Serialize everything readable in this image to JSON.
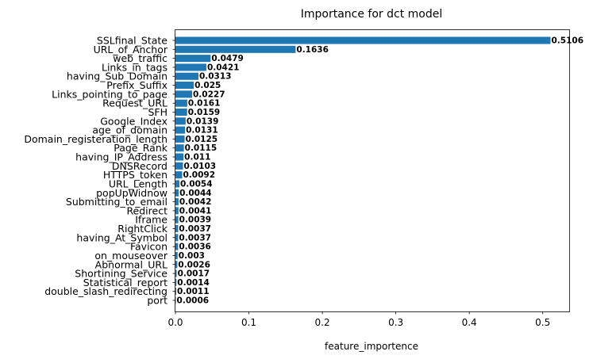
{
  "chart_data": {
    "type": "bar",
    "orientation": "horizontal",
    "title": "Importance for dct model",
    "xlabel": "feature_importence",
    "ylabel": "",
    "xlim": [
      0,
      0.536
    ],
    "xticks": [
      0.0,
      0.1,
      0.2,
      0.3,
      0.4,
      0.5
    ],
    "xtick_labels": [
      "0.0",
      "0.1",
      "0.2",
      "0.3",
      "0.4",
      "0.5"
    ],
    "grid": false,
    "bar_color": "#1f77b4",
    "categories": [
      "SSLfinal_State",
      "URL_of_Anchor",
      "web_traffic",
      "Links_in_tags",
      "having_Sub_Domain",
      "Prefix_Suffix",
      "Links_pointing_to_page",
      "Request_URL",
      "SFH",
      "Google_Index",
      "age_of_domain",
      "Domain_registeration_length",
      "Page_Rank",
      "having_IP_Address",
      "DNSRecord",
      "HTTPS_token",
      "URL_Length",
      "popUpWidnow",
      "Submitting_to_email",
      "Redirect",
      "Iframe",
      "RightClick",
      "having_At_Symbol",
      "Favicon",
      "on_mouseover",
      "Abnormal_URL",
      "Shortining_Service",
      "Statistical_report",
      "double_slash_redirecting",
      "port"
    ],
    "values": [
      0.5106,
      0.1636,
      0.0479,
      0.0421,
      0.0313,
      0.025,
      0.0227,
      0.0161,
      0.0159,
      0.0139,
      0.0131,
      0.0125,
      0.0115,
      0.011,
      0.0103,
      0.0092,
      0.0054,
      0.0044,
      0.0042,
      0.0041,
      0.0039,
      0.0037,
      0.0037,
      0.0036,
      0.003,
      0.0026,
      0.0017,
      0.0014,
      0.0011,
      0.0006
    ],
    "value_labels": [
      "0.5106",
      "0.1636",
      "0.0479",
      "0.0421",
      "0.0313",
      "0.025",
      "0.0227",
      "0.0161",
      "0.0159",
      "0.0139",
      "0.0131",
      "0.0125",
      "0.0115",
      "0.011",
      "0.0103",
      "0.0092",
      "0.0054",
      "0.0044",
      "0.0042",
      "0.0041",
      "0.0039",
      "0.0037",
      "0.0037",
      "0.0036",
      "0.003",
      "0.0026",
      "0.0017",
      "0.0014",
      "0.0011",
      "0.0006"
    ]
  }
}
